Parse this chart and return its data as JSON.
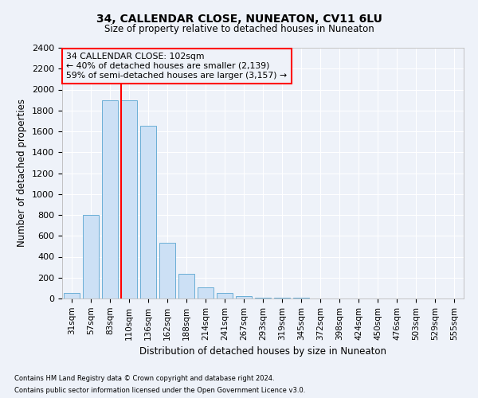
{
  "title1": "34, CALLENDAR CLOSE, NUNEATON, CV11 6LU",
  "title2": "Size of property relative to detached houses in Nuneaton",
  "xlabel": "Distribution of detached houses by size in Nuneaton",
  "ylabel": "Number of detached properties",
  "categories": [
    "31sqm",
    "57sqm",
    "83sqm",
    "110sqm",
    "136sqm",
    "162sqm",
    "188sqm",
    "214sqm",
    "241sqm",
    "267sqm",
    "293sqm",
    "319sqm",
    "345sqm",
    "372sqm",
    "398sqm",
    "424sqm",
    "450sqm",
    "476sqm",
    "503sqm",
    "529sqm",
    "555sqm"
  ],
  "values": [
    50,
    800,
    1900,
    1900,
    1650,
    530,
    240,
    110,
    50,
    25,
    10,
    5,
    5,
    3,
    2,
    1,
    1,
    1,
    1,
    1,
    0
  ],
  "bar_color": "#cce0f5",
  "bar_edge_color": "#6aaed6",
  "annotation_title": "34 CALLENDAR CLOSE: 102sqm",
  "annotation_line1": "← 40% of detached houses are smaller (2,139)",
  "annotation_line2": "59% of semi-detached houses are larger (3,157) →",
  "footnote1": "Contains HM Land Registry data © Crown copyright and database right 2024.",
  "footnote2": "Contains public sector information licensed under the Open Government Licence v3.0.",
  "ylim": [
    0,
    2400
  ],
  "yticks": [
    0,
    200,
    400,
    600,
    800,
    1000,
    1200,
    1400,
    1600,
    1800,
    2000,
    2200,
    2400
  ],
  "background_color": "#eef2f9",
  "grid_color": "#ffffff",
  "red_line_index": 3
}
